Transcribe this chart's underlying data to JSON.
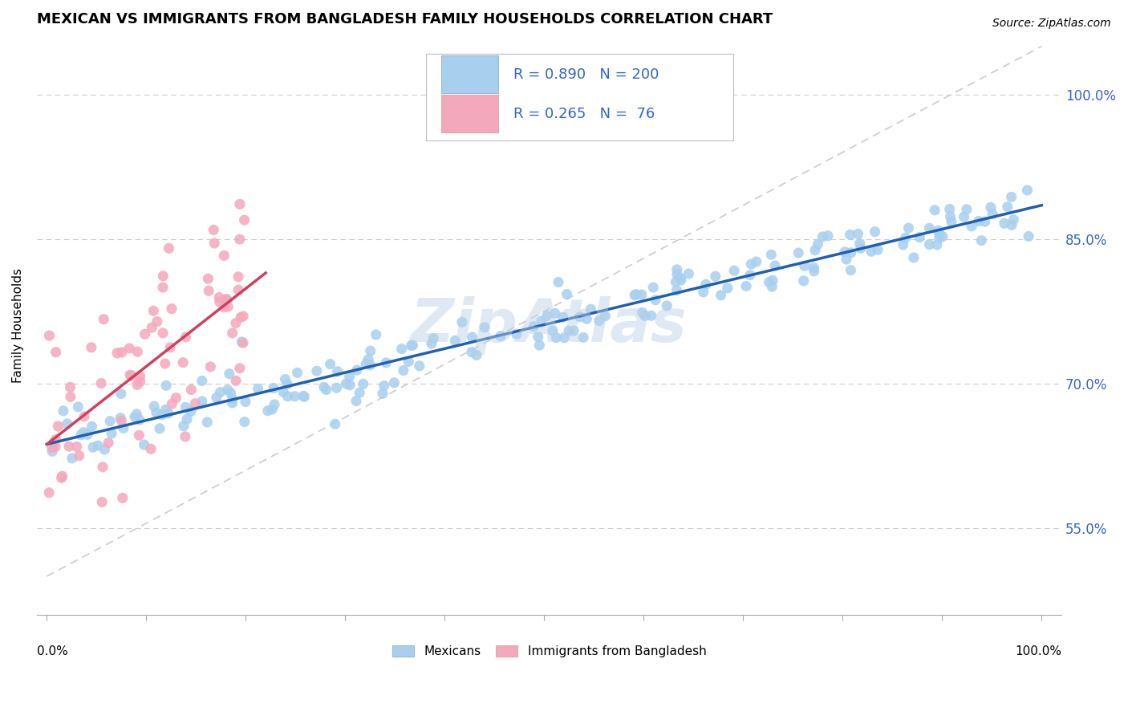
{
  "title": "MEXICAN VS IMMIGRANTS FROM BANGLADESH FAMILY HOUSEHOLDS CORRELATION CHART",
  "source": "Source: ZipAtlas.com",
  "ylabel": "Family Households",
  "watermark": "ZipAtlas",
  "blue_R": 0.89,
  "blue_N": 200,
  "pink_R": 0.265,
  "pink_N": 76,
  "blue_color": "#A8CFEE",
  "pink_color": "#F4A8BC",
  "blue_line_color": "#2060B0",
  "pink_line_color": "#D04060",
  "diag_line_color": "#CCCCCC",
  "legend_label_blue": "Mexicans",
  "legend_label_pink": "Immigrants from Bangladesh",
  "ytick_labels": [
    "55.0%",
    "70.0%",
    "85.0%",
    "100.0%"
  ],
  "ytick_values": [
    0.55,
    0.7,
    0.85,
    1.0
  ],
  "label_color": "#3366CC",
  "title_fontsize": 13,
  "axis_label_fontsize": 11,
  "tick_fontsize": 11,
  "xlim": [
    -0.01,
    1.02
  ],
  "ylim": [
    0.46,
    1.06
  ]
}
